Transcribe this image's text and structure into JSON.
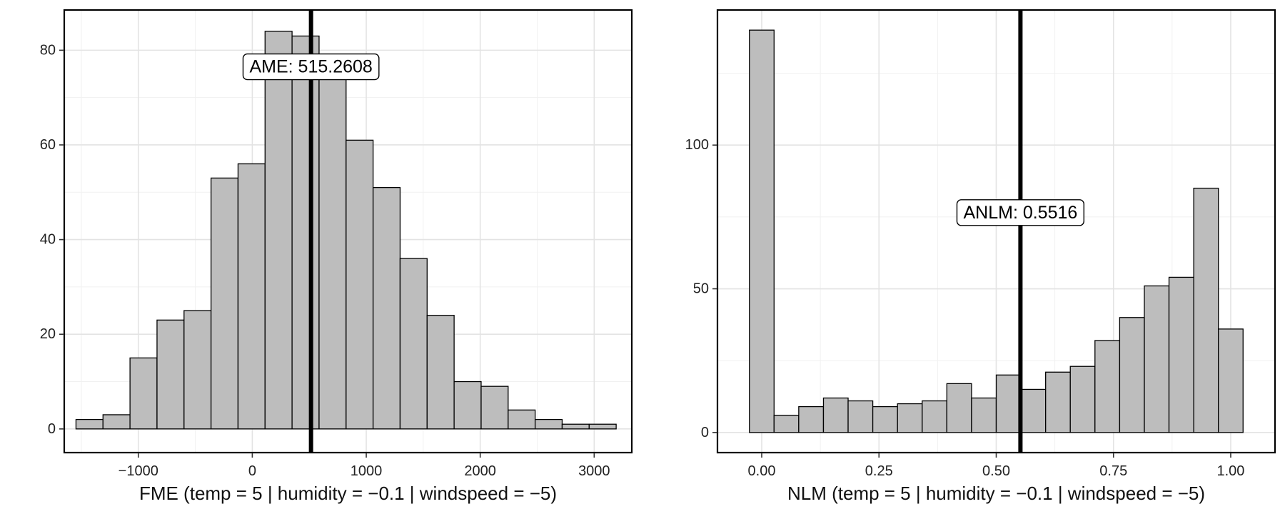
{
  "chart_data": [
    {
      "type": "histogram",
      "xlabel": "FME (temp = 5 | humidity = −0.1 | windspeed = −5)",
      "ylabel": "",
      "xlim": [
        -1650,
        3330
      ],
      "ylim": [
        -5,
        88.5
      ],
      "xticks": [
        -1000,
        0,
        1000,
        2000,
        3000
      ],
      "xtick_labels": [
        "−1000",
        "0",
        "1000",
        "2000",
        "3000"
      ],
      "yticks": [
        0,
        20,
        40,
        60,
        80
      ],
      "ytick_labels": [
        "0",
        "20",
        "40",
        "60",
        "80"
      ],
      "grid": true,
      "bar_color": "#bdbdbd",
      "bin_edges": [
        -1547,
        -1310,
        -1073,
        -836,
        -599,
        -362,
        -125,
        112,
        349,
        586,
        823,
        1060,
        1297,
        1534,
        1771,
        2008,
        2245,
        2482,
        2719,
        2956,
        3193
      ],
      "counts": [
        2,
        3,
        15,
        23,
        25,
        53,
        56,
        84,
        83,
        75,
        61,
        51,
        36,
        24,
        10,
        9,
        4,
        2,
        1,
        1
      ],
      "vline": {
        "value": 515.2608,
        "label": "AME: 515.2608",
        "label_y": 76.5
      }
    },
    {
      "type": "histogram",
      "xlabel": "NLM (temp = 5 | humidity = −0.1 | windspeed = −5)",
      "ylabel": "",
      "xlim": [
        -0.0944,
        1.0944
      ],
      "ylim": [
        -7,
        147
      ],
      "xticks": [
        0.0,
        0.25,
        0.5,
        0.75,
        1.0
      ],
      "xtick_labels": [
        "0.00",
        "0.25",
        "0.50",
        "0.75",
        "1.00"
      ],
      "yticks": [
        0,
        50,
        100
      ],
      "ytick_labels": [
        "0",
        "50",
        "100"
      ],
      "grid": true,
      "bar_color": "#bdbdbd",
      "bin_edges": [
        -0.0263,
        0.0263,
        0.0789,
        0.1316,
        0.1842,
        0.2368,
        0.2895,
        0.3421,
        0.3947,
        0.4474,
        0.5,
        0.5526,
        0.6053,
        0.6579,
        0.7105,
        0.7632,
        0.8158,
        0.8684,
        0.9211,
        0.9737,
        1.0263
      ],
      "counts": [
        140,
        6,
        9,
        12,
        11,
        9,
        10,
        11,
        17,
        12,
        20,
        15,
        21,
        23,
        32,
        40,
        51,
        54,
        85,
        36
      ],
      "vline": {
        "value": 0.5516,
        "label": "ANLM: 0.5516",
        "label_y": 76.5
      }
    }
  ]
}
